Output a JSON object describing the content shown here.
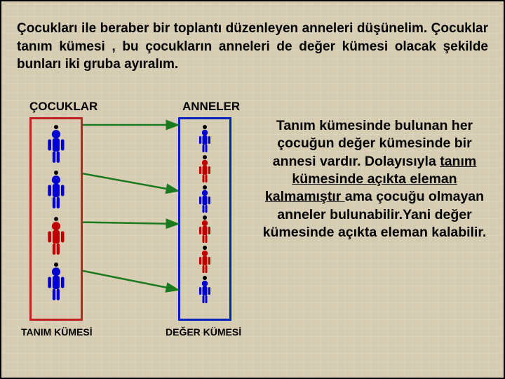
{
  "top_paragraph": "Çocukları ile beraber bir toplantı düzenleyen anneleri düşünelim. Çocuklar tanım kümesi , bu çocukların anneleri de değer kümesi olacak şekilde bunları iki gruba ayıralım.",
  "headers": {
    "left": "ÇOCUKLAR",
    "right": "ANNELER"
  },
  "captions": {
    "left": "TANIM KÜMESİ",
    "right": "DEĞER KÜMESİ"
  },
  "side_text": {
    "part1": "Tanım kümesinde bulunan her çocuğun değer kümesinde bir annesi vardır. Dolayısıyla ",
    "underlined": "tanım kümesinde açıkta eleman kalmamıştır ",
    "part2": "ama çocuğu olmayan anneler bulunabilir.Yani değer kümesinde açıkta eleman kalabilir."
  },
  "sets": {
    "left": {
      "border_color": "#c02020",
      "count": 4,
      "colors": [
        "#0000d0",
        "#0000d0",
        "#c00000",
        "#0000d0"
      ]
    },
    "right": {
      "border_color": "#0020c0",
      "count": 6,
      "colors": [
        "#0000d0",
        "#c00000",
        "#0000d0",
        "#c00000",
        "#c00000",
        "#0000d0"
      ]
    }
  },
  "arrows": {
    "color": "#1a7a20",
    "stroke_width": 2.5,
    "connections": [
      {
        "from": 0,
        "to": 0
      },
      {
        "from": 1,
        "to": 2
      },
      {
        "from": 2,
        "to": 3
      },
      {
        "from": 3,
        "to": 5
      }
    ]
  },
  "background_color": "#d6ccb2"
}
